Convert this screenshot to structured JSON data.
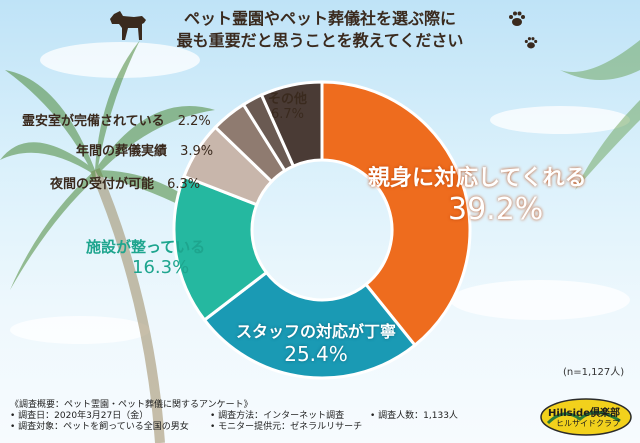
{
  "title_lines": [
    "ペット霊園やペット葬儀社を選ぶ際に",
    "最も重要だと思うことを教えてください"
  ],
  "sample_note": "(n=1,127人)",
  "chart_data": {
    "type": "pie",
    "donut": true,
    "title": "ペット霊園やペット葬儀社を選ぶ際に最も重要だと思うことを教えてください",
    "slices": [
      {
        "label": "親身に対応してくれる",
        "value": 39.2,
        "value_text": "39.2%",
        "color": "#ee6c1e"
      },
      {
        "label": "スタッフの対応が丁寧",
        "value": 25.4,
        "value_text": "25.4%",
        "color": "#1a9ab4"
      },
      {
        "label": "施設が整っている",
        "value": 16.3,
        "value_text": "16.3%",
        "color": "#25b8a0"
      },
      {
        "label": "夜間の受付が可能",
        "value": 6.3,
        "value_text": "6.3%",
        "color": "#c8b6ab"
      },
      {
        "label": "年間の葬儀実績",
        "value": 3.9,
        "value_text": "3.9%",
        "color": "#8f7b70"
      },
      {
        "label": "霊安室が完備されている",
        "value": 2.2,
        "value_text": "2.2%",
        "color": "#6a5a52"
      },
      {
        "label": "その他",
        "value": 6.7,
        "value_text": "6.7%",
        "color": "#4a3b35"
      }
    ]
  },
  "survey": {
    "heading": "《調査概要：ペット霊園・ペット葬儀に関するアンケート》",
    "date": "• 調査日：2020年3月27日（金）",
    "method": "• 調査方法：インターネット調査",
    "count": "• 調査人数：1,133人",
    "target": "• 調査対象：ペットを飼っている全国の男女",
    "provider": "• モニター提供元：ゼネラルリサーチ"
  },
  "logo": {
    "main": "Hillside倶楽部",
    "sub": "ヒルサイドクラブ"
  }
}
